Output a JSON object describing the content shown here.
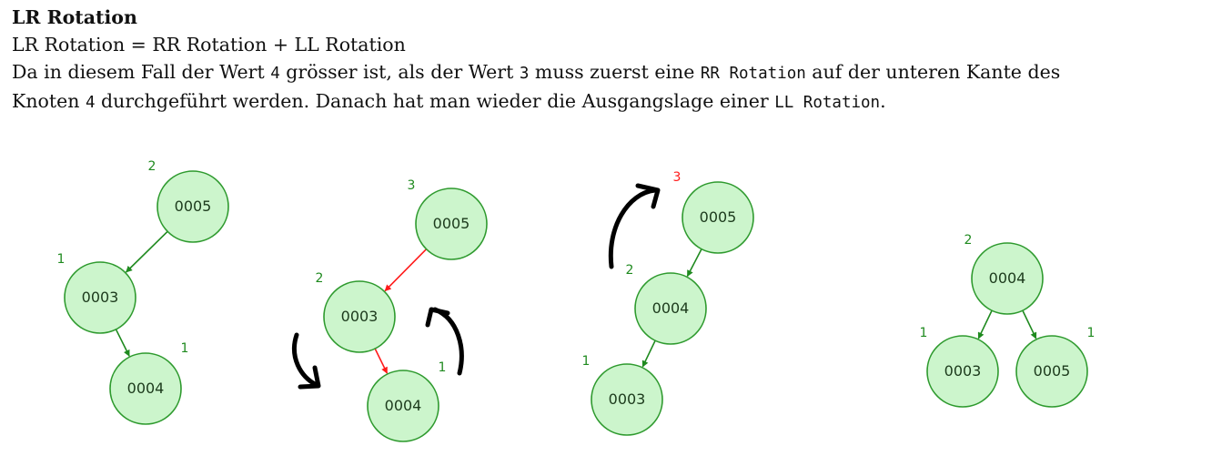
{
  "heading": "LR Rotation",
  "formula": "LR Rotation = RR Rotation + LL Rotation",
  "paragraph": {
    "line1": {
      "t1": "Da in diesem Fall der Wert ",
      "c1": "4",
      "t2": " grösser ist, als der Wert ",
      "c2": "3",
      "t3": " muss zuerst eine ",
      "c3": "RR Rotation",
      "t4": " auf der unteren Kante des"
    },
    "line2": {
      "t1": "Knoten ",
      "c1": "4",
      "t2": " durchgeführt werden. Danach hat man wieder die Ausgangslage einer ",
      "c2": "LL Rotation",
      "t3": "."
    }
  },
  "colors": {
    "node_fill": "#ccf5cc",
    "node_stroke": "#2e9a2e",
    "edge_normal": "#1f8a1f",
    "edge_highlight": "#ff1a1a",
    "height_normal": "#1f8a1f",
    "height_highlight": "#ff1a1a",
    "rotation_arrow": "#000000"
  },
  "trees": [
    {
      "nodes": [
        {
          "id": "a5",
          "label": "0005",
          "height": "2"
        },
        {
          "id": "a3",
          "label": "0003",
          "height": "1"
        },
        {
          "id": "a4",
          "label": "0004",
          "height": "1"
        }
      ],
      "edges": [
        {
          "from": "a5",
          "to": "a3",
          "highlight": false
        },
        {
          "from": "a3",
          "to": "a4",
          "highlight": false
        }
      ]
    },
    {
      "nodes": [
        {
          "id": "b5",
          "label": "0005",
          "height": "3"
        },
        {
          "id": "b3",
          "label": "0003",
          "height": "2"
        },
        {
          "id": "b4",
          "label": "0004",
          "height": "1"
        }
      ],
      "edges": [
        {
          "from": "b5",
          "to": "b3",
          "highlight": true
        },
        {
          "from": "b3",
          "to": "b4",
          "highlight": true
        }
      ]
    },
    {
      "nodes": [
        {
          "id": "c5",
          "label": "0005",
          "height": "3",
          "height_highlight": true
        },
        {
          "id": "c4",
          "label": "0004",
          "height": "2"
        },
        {
          "id": "c3",
          "label": "0003",
          "height": "1"
        }
      ],
      "edges": [
        {
          "from": "c5",
          "to": "c4",
          "highlight": false
        },
        {
          "from": "c4",
          "to": "c3",
          "highlight": false
        }
      ]
    },
    {
      "nodes": [
        {
          "id": "d4",
          "label": "0004",
          "height": "2"
        },
        {
          "id": "d3",
          "label": "0003",
          "height": "1"
        },
        {
          "id": "d5",
          "label": "0005",
          "height": "1"
        }
      ],
      "edges": [
        {
          "from": "d4",
          "to": "d3",
          "highlight": false
        },
        {
          "from": "d4",
          "to": "d5",
          "highlight": false
        }
      ]
    }
  ]
}
